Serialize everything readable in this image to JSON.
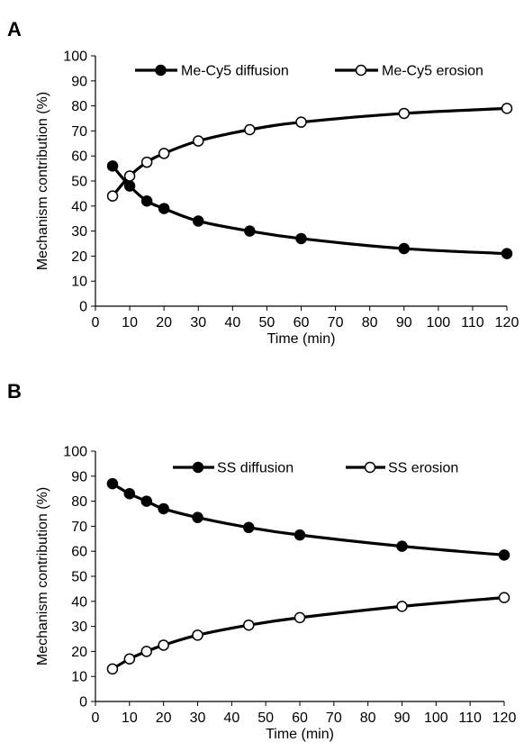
{
  "chart_data": [
    {
      "panel_label": "A",
      "type": "line",
      "xlabel": "Time (min)",
      "ylabel": "Mechanism contribution (%)",
      "xlim": [
        0,
        120
      ],
      "ylim": [
        0,
        100
      ],
      "xticks": [
        0,
        10,
        20,
        30,
        40,
        50,
        60,
        70,
        80,
        90,
        100,
        110,
        120
      ],
      "yticks": [
        0,
        10,
        20,
        30,
        40,
        50,
        60,
        70,
        80,
        90,
        100
      ],
      "grid": false,
      "legend_position": "top",
      "x": [
        5,
        10,
        15,
        20,
        30,
        45,
        60,
        90,
        120
      ],
      "series": [
        {
          "name": "Me-Cy5 diffusion",
          "marker": "filled-circle",
          "values": [
            56,
            48,
            42,
            39,
            34,
            30,
            27,
            23,
            21
          ]
        },
        {
          "name": "Me-Cy5 erosion",
          "marker": "open-circle",
          "values": [
            44,
            52,
            57.5,
            61,
            66,
            70.5,
            73.5,
            77,
            79
          ]
        }
      ]
    },
    {
      "panel_label": "B",
      "type": "line",
      "xlabel": "Time (min)",
      "ylabel": "Mechanism contribution (%)",
      "xlim": [
        0,
        120
      ],
      "ylim": [
        0,
        100
      ],
      "xticks": [
        0,
        10,
        20,
        30,
        40,
        50,
        60,
        70,
        80,
        90,
        100,
        110,
        120
      ],
      "yticks": [
        0,
        10,
        20,
        30,
        40,
        50,
        60,
        70,
        80,
        90,
        100
      ],
      "grid": false,
      "legend_position": "top",
      "x": [
        5,
        10,
        15,
        20,
        30,
        45,
        60,
        90,
        120
      ],
      "series": [
        {
          "name": "SS diffusion",
          "marker": "filled-circle",
          "values": [
            87,
            83,
            80,
            77,
            73.5,
            69.5,
            66.5,
            62,
            58.5
          ]
        },
        {
          "name": "SS erosion",
          "marker": "open-circle",
          "values": [
            13,
            17,
            20,
            22.5,
            26.5,
            30.5,
            33.5,
            38,
            41.5
          ]
        }
      ]
    }
  ]
}
